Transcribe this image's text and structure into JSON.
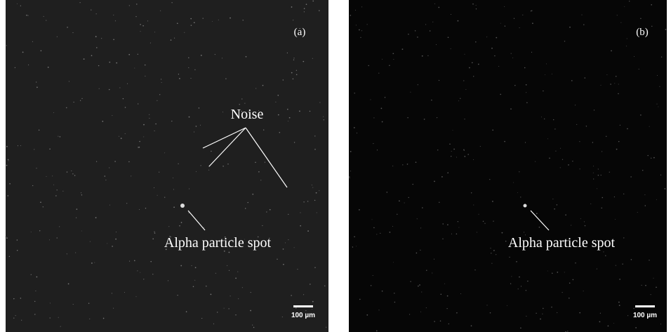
{
  "panels": [
    {
      "label": "(a)",
      "noise": "Noise",
      "spot": "Alpha particle spot",
      "scale_bar": "100 µm"
    },
    {
      "label": "(b)",
      "spot": "Alpha particle spot",
      "scale_bar": "100 µm"
    }
  ]
}
